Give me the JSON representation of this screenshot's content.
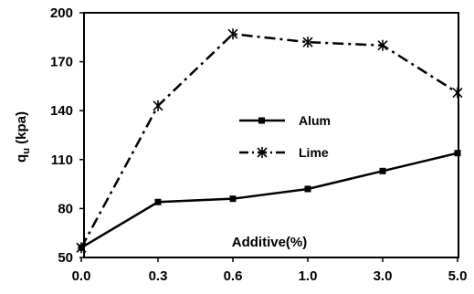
{
  "chart_data": {
    "type": "line",
    "categories": [
      "0.0",
      "0.3",
      "0.6",
      "1.0",
      "3.0",
      "5.0"
    ],
    "series": [
      {
        "name": "Alum",
        "values": [
          56,
          84,
          86,
          92,
          103,
          114
        ],
        "color": "#000000",
        "line_style": "solid",
        "marker": "square"
      },
      {
        "name": "Lime",
        "values": [
          56,
          143,
          187,
          182,
          180,
          151
        ],
        "color": "#000000",
        "line_style": "dash-dot",
        "marker": "asterisk"
      }
    ],
    "title": "",
    "xlabel": "Additive(%)",
    "ylabel": "qu (kpa)",
    "ylabel_main": "q",
    "ylabel_sub": "u",
    "ylabel_rest": " (kpa)",
    "ylim": [
      50,
      200
    ],
    "yticks": [
      "50",
      "80",
      "110",
      "140",
      "170",
      "200"
    ],
    "grid": false,
    "legend_position": "inside-center-right"
  }
}
